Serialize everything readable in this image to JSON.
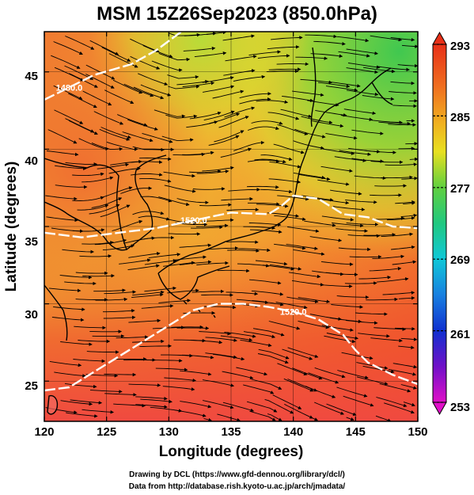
{
  "title": "MSM 15Z26Sep2023 (850.0hPa)",
  "xlabel": "Longitude (degrees)",
  "ylabel": "Latitude  (degrees)",
  "x_ticks": [
    "120",
    "125",
    "130",
    "135",
    "140",
    "145",
    "150"
  ],
  "y_ticks": [
    "25",
    "30",
    "35",
    "40",
    "45"
  ],
  "colorbar": {
    "labels": [
      "293",
      "285",
      "277",
      "269",
      "261",
      "253"
    ],
    "min": 253,
    "max": 293
  },
  "contour_labels": [
    "1480.0",
    "1520.0",
    "1520.0"
  ],
  "credits": {
    "line1": "Drawing by DCL (https://www.gfd-dennou.org/library/dcl/)",
    "line2": "Data from http://database.rish.kyoto-u.ac.jp/arch/jmadata/"
  },
  "chart_data": {
    "type": "heatmap",
    "title": "MSM 15Z26Sep2023 (850.0hPa)",
    "xlabel": "Longitude (degrees)",
    "ylabel": "Latitude  (degrees)",
    "xlim": [
      120,
      150
    ],
    "ylim": [
      22.4,
      47.6
    ],
    "x_ticks": [
      120,
      125,
      130,
      135,
      140,
      145,
      150
    ],
    "y_ticks": [
      25,
      30,
      35,
      40,
      45
    ],
    "colorbar_range": [
      253,
      293
    ],
    "colorbar_ticks": [
      293,
      285,
      277,
      269,
      261,
      253
    ],
    "contour_lines": [
      {
        "label": "1480.0",
        "points": [
          [
            120,
            43.2
          ],
          [
            122,
            44.0
          ],
          [
            124,
            44.8
          ],
          [
            127,
            45.5
          ],
          [
            129,
            46.4
          ],
          [
            131,
            47.6
          ]
        ]
      },
      {
        "label": "1520.0",
        "points": [
          [
            120,
            34.6
          ],
          [
            123,
            34.3
          ],
          [
            126,
            34.6
          ],
          [
            129,
            34.9
          ],
          [
            132,
            35.4
          ],
          [
            135,
            35.9
          ],
          [
            138,
            35.8
          ],
          [
            139,
            36.3
          ],
          [
            140,
            37.0
          ],
          [
            142,
            36.8
          ],
          [
            144,
            35.8
          ],
          [
            146,
            35.6
          ],
          [
            148,
            35.0
          ],
          [
            150,
            34.9
          ]
        ]
      },
      {
        "label": "1520.0",
        "points": [
          [
            120,
            24.4
          ],
          [
            122,
            24.6
          ],
          [
            124,
            25.6
          ],
          [
            126,
            26.6
          ],
          [
            128,
            27.6
          ],
          [
            130,
            28.6
          ],
          [
            132,
            29.6
          ],
          [
            134,
            30.0
          ],
          [
            136,
            30.0
          ],
          [
            138,
            29.8
          ],
          [
            140,
            29.5
          ],
          [
            142,
            29.0
          ],
          [
            144,
            28.0
          ],
          [
            145,
            27.0
          ],
          [
            146,
            26.2
          ],
          [
            148,
            25.4
          ],
          [
            150,
            24.8
          ]
        ]
      }
    ],
    "colors": {
      "warm": "#f05a28",
      "mid": "#f0a020",
      "cool": "#b8d830",
      "cold": "#58c850"
    }
  }
}
